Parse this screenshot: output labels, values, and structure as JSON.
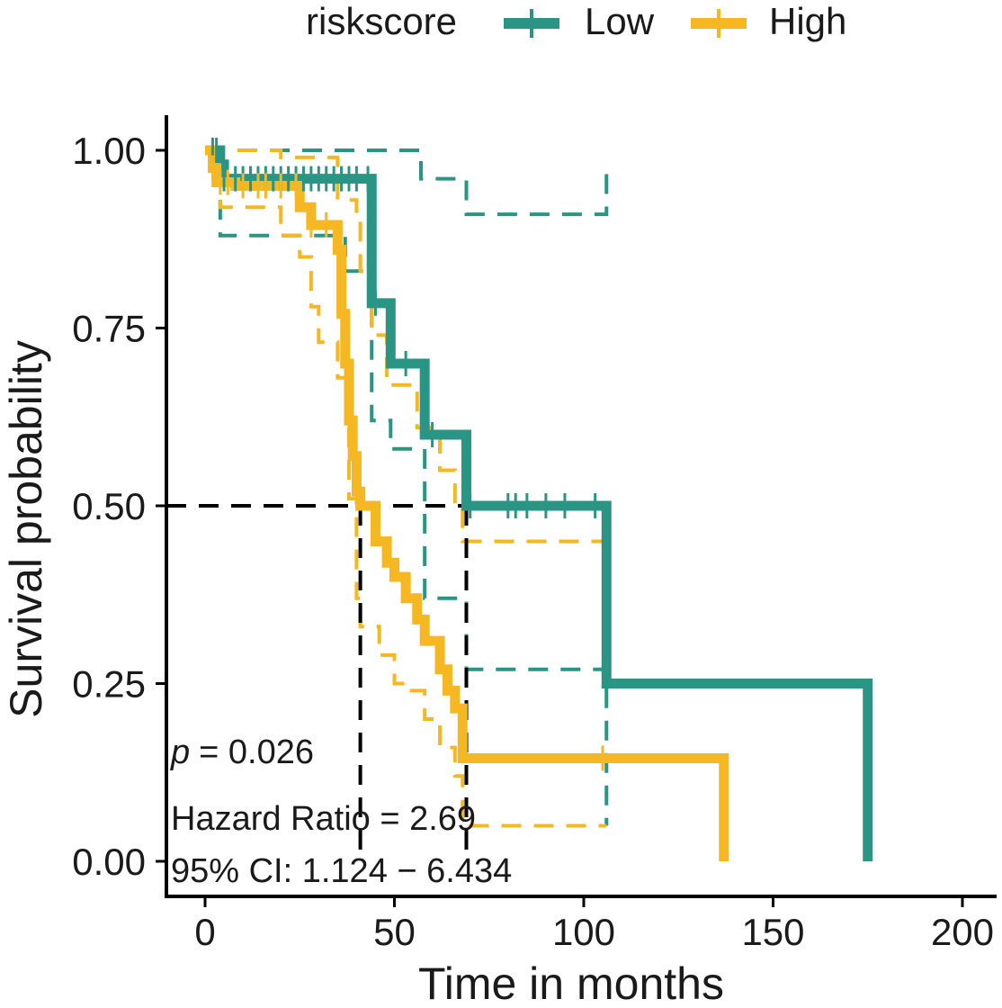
{
  "chart_data": {
    "type": "line",
    "subtype": "kaplan-meier",
    "title": "",
    "xlabel": "Time in months",
    "ylabel": "Survival probability",
    "xlim": [
      0,
      200
    ],
    "ylim": [
      0,
      1
    ],
    "xticks": [
      "0",
      "50",
      "100",
      "150",
      "200"
    ],
    "yticks": [
      "0.00",
      "0.25",
      "0.50",
      "0.75",
      "1.00"
    ],
    "legend": {
      "title": "riskscore",
      "position": "top",
      "entries": [
        "Low",
        "High"
      ]
    },
    "colors": {
      "Low": "#2a9585",
      "High": "#f5b722",
      "median": "#000000"
    },
    "series": [
      {
        "name": "Low",
        "color": "#2a9585",
        "steps": [
          [
            0,
            1.0
          ],
          [
            4,
            0.98
          ],
          [
            5,
            0.96
          ],
          [
            44,
            0.96
          ],
          [
            44,
            0.785
          ],
          [
            49,
            0.785
          ],
          [
            49,
            0.7
          ],
          [
            58,
            0.7
          ],
          [
            58,
            0.6
          ],
          [
            69,
            0.6
          ],
          [
            69,
            0.5
          ],
          [
            106,
            0.5
          ],
          [
            106,
            0.25
          ],
          [
            175,
            0.25
          ],
          [
            175,
            0.0
          ]
        ],
        "ci_upper": [
          [
            0,
            1.0
          ],
          [
            57,
            1.0
          ],
          [
            57,
            0.96
          ],
          [
            69,
            0.96
          ],
          [
            69,
            0.91
          ],
          [
            106,
            0.91
          ],
          [
            106,
            0.98
          ]
        ],
        "ci_lower": [
          [
            0,
            1.0
          ],
          [
            4,
            0.88
          ],
          [
            37,
            0.88
          ],
          [
            37,
            0.83
          ],
          [
            44,
            0.83
          ],
          [
            44,
            0.62
          ],
          [
            49,
            0.62
          ],
          [
            49,
            0.58
          ],
          [
            58,
            0.58
          ],
          [
            58,
            0.37
          ],
          [
            69,
            0.37
          ],
          [
            69,
            0.27
          ],
          [
            106,
            0.27
          ],
          [
            106,
            0.05
          ]
        ],
        "censor_x": [
          2,
          3,
          5,
          8,
          10,
          12,
          14,
          16,
          18,
          20,
          22,
          24,
          26,
          28,
          30,
          32,
          34,
          36,
          38,
          40,
          43,
          45,
          53,
          60,
          70,
          80,
          82,
          85,
          90,
          95,
          103
        ]
      },
      {
        "name": "High",
        "color": "#f5b722",
        "steps": [
          [
            0,
            1.0
          ],
          [
            2,
            0.975
          ],
          [
            3,
            0.955
          ],
          [
            8,
            0.95
          ],
          [
            20,
            0.95
          ],
          [
            25,
            0.92
          ],
          [
            28,
            0.895
          ],
          [
            35,
            0.86
          ],
          [
            36,
            0.77
          ],
          [
            37,
            0.7
          ],
          [
            38,
            0.62
          ],
          [
            39,
            0.57
          ],
          [
            40,
            0.52
          ],
          [
            41,
            0.5
          ],
          [
            45,
            0.45
          ],
          [
            48,
            0.42
          ],
          [
            50,
            0.4
          ],
          [
            53,
            0.37
          ],
          [
            56,
            0.34
          ],
          [
            58,
            0.31
          ],
          [
            62,
            0.27
          ],
          [
            64,
            0.24
          ],
          [
            66,
            0.215
          ],
          [
            68,
            0.145
          ],
          [
            137,
            0.145
          ],
          [
            137,
            0.0
          ]
        ],
        "ci_upper": [
          [
            0,
            1.0
          ],
          [
            20,
            1.0
          ],
          [
            20,
            0.99
          ],
          [
            35,
            0.99
          ],
          [
            35,
            0.93
          ],
          [
            40,
            0.9
          ],
          [
            41,
            0.83
          ],
          [
            44,
            0.74
          ],
          [
            48,
            0.67
          ],
          [
            56,
            0.61
          ],
          [
            62,
            0.55
          ],
          [
            66,
            0.5
          ],
          [
            68,
            0.45
          ],
          [
            106,
            0.45
          ]
        ],
        "ci_lower": [
          [
            0,
            1.0
          ],
          [
            4,
            0.92
          ],
          [
            20,
            0.88
          ],
          [
            25,
            0.85
          ],
          [
            28,
            0.78
          ],
          [
            30,
            0.73
          ],
          [
            35,
            0.68
          ],
          [
            38,
            0.51
          ],
          [
            40,
            0.37
          ],
          [
            41,
            0.33
          ],
          [
            46,
            0.29
          ],
          [
            50,
            0.25
          ],
          [
            53,
            0.24
          ],
          [
            58,
            0.2
          ],
          [
            62,
            0.16
          ],
          [
            66,
            0.12
          ],
          [
            68,
            0.06
          ],
          [
            70,
            0.05
          ],
          [
            106,
            0.05
          ]
        ],
        "censor_x": [
          2,
          4,
          6,
          10,
          14,
          16,
          20,
          24,
          28,
          32,
          105
        ]
      }
    ],
    "median_survival": {
      "y": 0.5,
      "Low": 69,
      "High": 41
    },
    "annotations": {
      "p_label": "p",
      "p_value": "= 0.026",
      "hazard_ratio": "Hazard Ratio = 2.69",
      "ci": "95% CI: 1.124 − 6.434"
    }
  }
}
